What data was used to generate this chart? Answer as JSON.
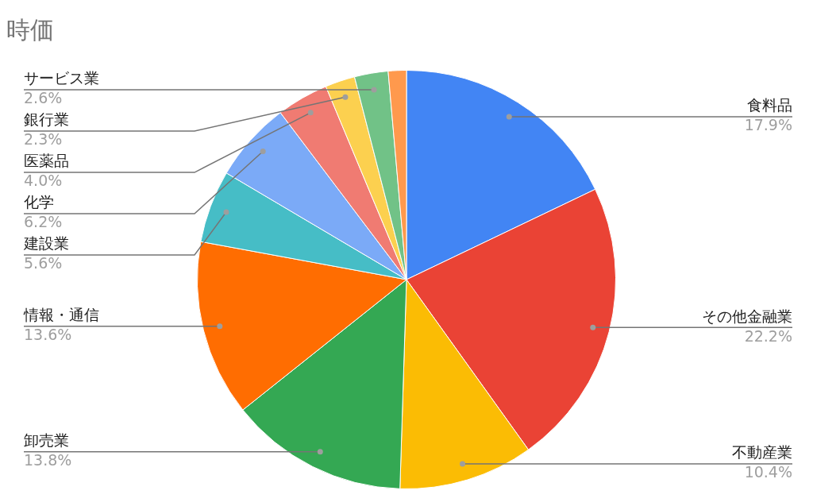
{
  "chart_data": {
    "type": "pie",
    "title": "時価",
    "categories": [
      "食料品",
      "その他金融業",
      "不動産業",
      "卸売業",
      "情報・通信",
      "建設業",
      "化学",
      "医薬品",
      "銀行業",
      "サービス業",
      null
    ],
    "values": [
      17.9,
      22.2,
      10.4,
      13.8,
      13.6,
      5.6,
      6.2,
      4.0,
      2.3,
      2.6,
      1.4
    ],
    "colors": [
      "#4285f4",
      "#ea4335",
      "#fbbc04",
      "#34a853",
      "#ff6d01",
      "#46bdc6",
      "#7baaf7",
      "#f07b72",
      "#fcd04f",
      "#71c287",
      "#ff994d"
    ],
    "value_labels": [
      "17.9%",
      "22.2%",
      "10.4%",
      "13.8%",
      "13.6%",
      "5.6%",
      "6.2%",
      "4.0%",
      "2.3%",
      "2.6%",
      null
    ],
    "legend": false
  }
}
